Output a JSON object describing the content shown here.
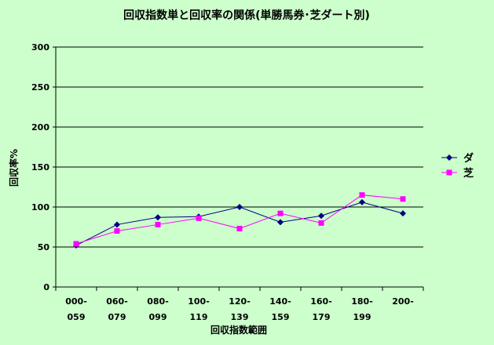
{
  "chart_data": {
    "type": "line",
    "title": "回収指数単と回収率の関係(単勝馬券･芝ダート別)",
    "xlabel": "回収指数範囲",
    "ylabel": "回収率%",
    "categories": [
      [
        "000-",
        "059"
      ],
      [
        "060-",
        "079"
      ],
      [
        "080-",
        "099"
      ],
      [
        "100-",
        "119"
      ],
      [
        "120-",
        "139"
      ],
      [
        "140-",
        "159"
      ],
      [
        "160-",
        "179"
      ],
      [
        "180-",
        "199"
      ],
      [
        "200-",
        ""
      ]
    ],
    "ylim": [
      0,
      300
    ],
    "yticks": [
      "0",
      "50",
      "100",
      "150",
      "200",
      "250",
      "300"
    ],
    "grid": true,
    "legend_position": "right",
    "series": [
      {
        "name": "ダ",
        "color": "#000080",
        "marker": "diamond",
        "values": [
          52,
          78,
          87,
          88,
          100,
          81,
          89,
          106,
          92
        ]
      },
      {
        "name": "芝",
        "color": "#ff00ff",
        "marker": "square",
        "values": [
          54,
          70,
          78,
          86,
          73,
          92,
          80,
          115,
          110
        ]
      }
    ]
  }
}
